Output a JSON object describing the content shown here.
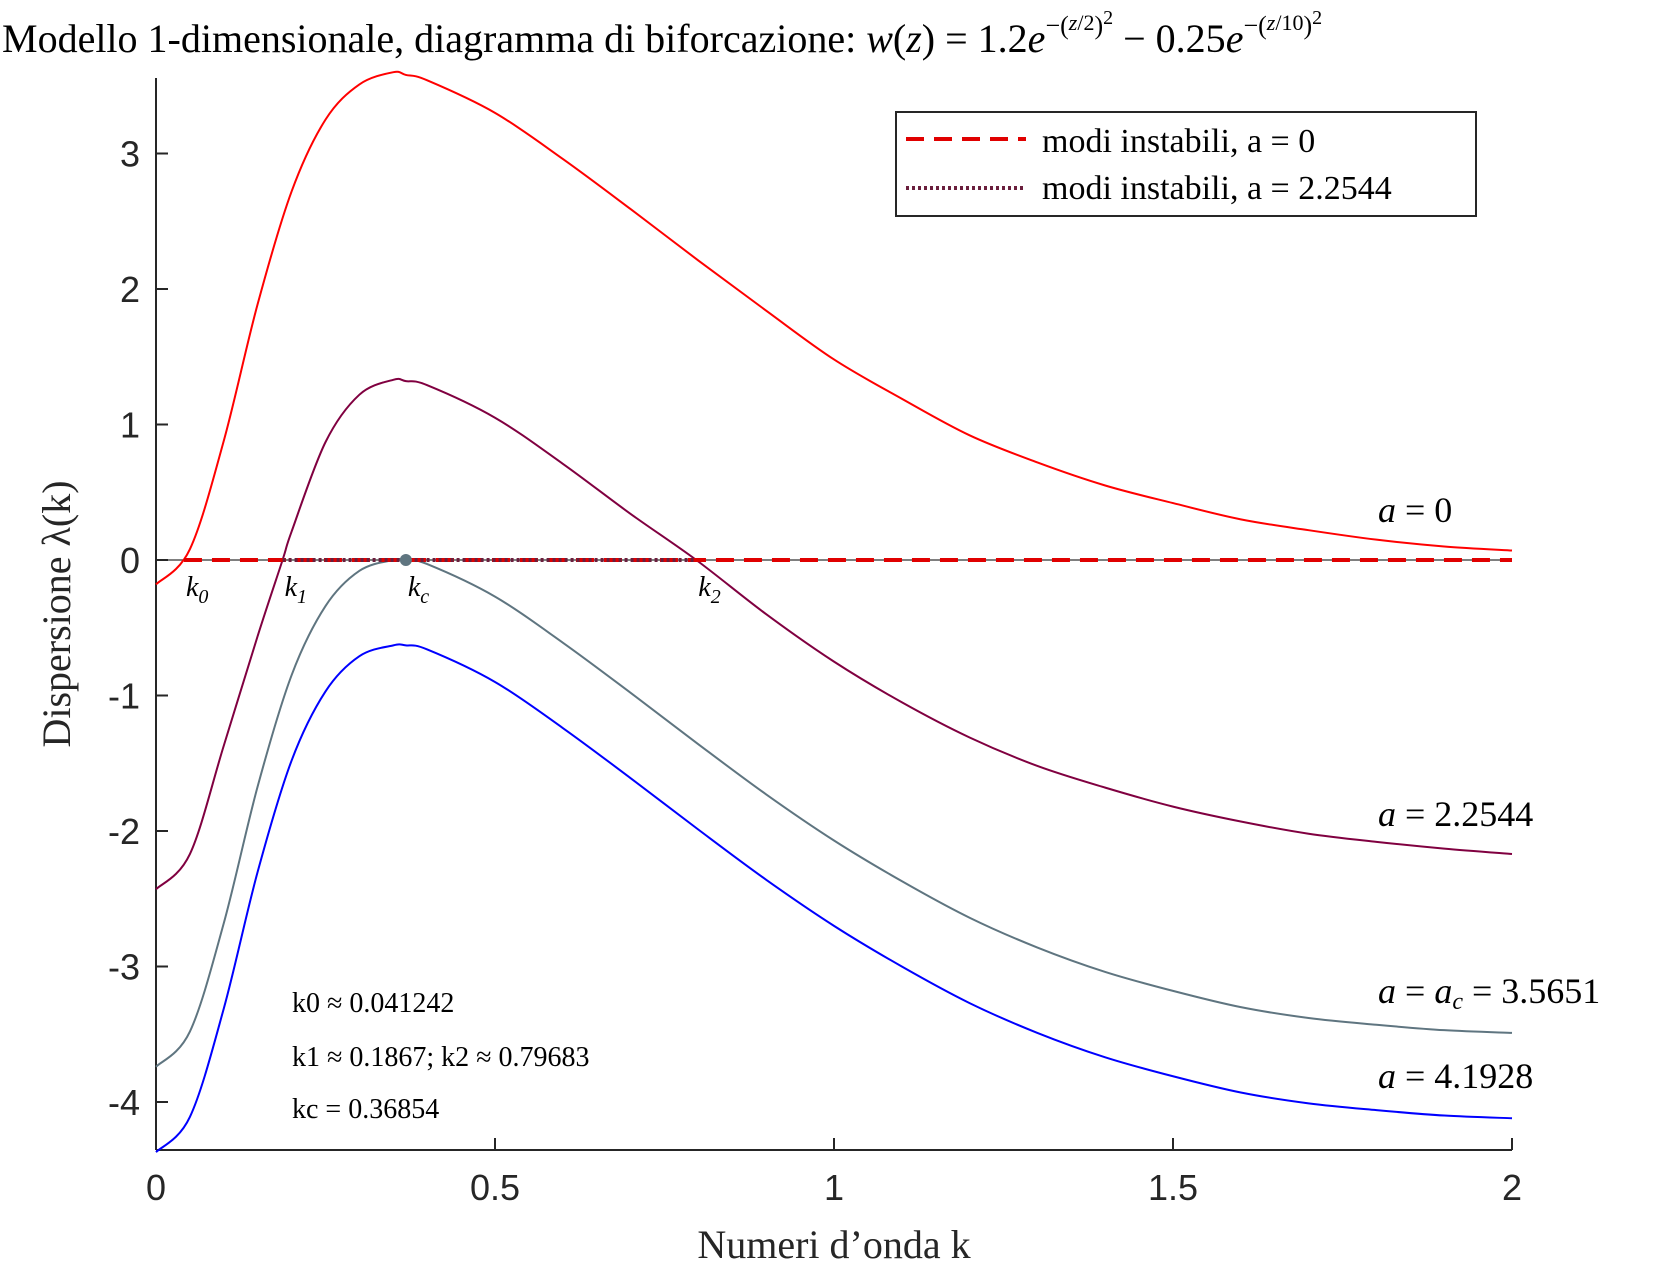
{
  "title": "Modello 1-dimensionale, diagramma di biforcazione: w(z) = 1.2e^(−(z/2)²) − 0.25e^(−(z/10)²)",
  "chart_data": {
    "type": "line",
    "title": "Modello 1-dimensionale, diagramma di biforcazione: w(z) = 1.2e^(−(z/2)²) − 0.25e^(−(z/10)²)",
    "xlabel": "Numeri d’onda k",
    "ylabel": "Dispersione λ(k)",
    "xlim": [
      0,
      2
    ],
    "ylim": [
      -4.4,
      3.6
    ],
    "xticks": [
      0,
      0.5,
      1,
      1.5,
      2
    ],
    "xtick_labels": [
      "0",
      "0.5",
      "1",
      "1.5",
      "2"
    ],
    "yticks": [
      -4,
      -3,
      -2,
      -1,
      0,
      1,
      2,
      3
    ],
    "ytick_labels": [
      "-4",
      "-3",
      "-2",
      "-1",
      "0",
      "1",
      "2",
      "3"
    ],
    "grid": false,
    "legend_position": "top-right",
    "legend": [
      {
        "label": "modi instabili, a = 0",
        "color": "#ff0000",
        "style": "dashed"
      },
      {
        "label": "modi instabili, a = 2.2544",
        "color": "#800040",
        "style": "dotted"
      }
    ],
    "series": [
      {
        "label": "a = 0",
        "color": "#ff0000",
        "x": [
          0,
          0.05,
          0.1,
          0.15,
          0.2,
          0.25,
          0.3,
          0.35,
          0.36854,
          0.4,
          0.5,
          0.6,
          0.7,
          0.8,
          0.9,
          1.0,
          1.1,
          1.2,
          1.3,
          1.4,
          1.5,
          1.6,
          1.7,
          1.8,
          1.9,
          2.0
        ],
        "y": [
          -0.18,
          0.08,
          0.88,
          1.89,
          2.72,
          3.25,
          3.51,
          3.6,
          3.58,
          3.54,
          3.3,
          2.96,
          2.59,
          2.21,
          1.84,
          1.48,
          1.19,
          0.92,
          0.72,
          0.55,
          0.42,
          0.3,
          0.22,
          0.15,
          0.1,
          0.07
        ]
      },
      {
        "label": "a = 2.2544",
        "color": "#800040",
        "x": [
          0,
          0.05,
          0.1,
          0.15,
          0.1867,
          0.2,
          0.25,
          0.3,
          0.35,
          0.36854,
          0.4,
          0.5,
          0.6,
          0.7,
          0.79683,
          0.9,
          1.0,
          1.1,
          1.2,
          1.3,
          1.4,
          1.5,
          1.6,
          1.7,
          1.8,
          1.9,
          2.0
        ],
        "y": [
          -2.43,
          -2.17,
          -1.37,
          -0.56,
          0.0,
          0.21,
          0.87,
          1.22,
          1.33,
          1.32,
          1.29,
          1.05,
          0.71,
          0.34,
          0.0,
          -0.4,
          -0.75,
          -1.05,
          -1.31,
          -1.52,
          -1.68,
          -1.82,
          -1.93,
          -2.02,
          -2.08,
          -2.13,
          -2.17
        ]
      },
      {
        "label": "a = a_c = 3.5651",
        "color": "#5f7580",
        "x": [
          0,
          0.05,
          0.1,
          0.15,
          0.2,
          0.25,
          0.3,
          0.35,
          0.36854,
          0.4,
          0.5,
          0.6,
          0.7,
          0.8,
          0.9,
          1.0,
          1.1,
          1.2,
          1.3,
          1.4,
          1.5,
          1.6,
          1.7,
          1.8,
          1.9,
          2.0
        ],
        "y": [
          -3.74,
          -3.48,
          -2.68,
          -1.67,
          -0.85,
          -0.34,
          -0.08,
          0.0,
          0.0,
          -0.03,
          -0.27,
          -0.61,
          -0.98,
          -1.36,
          -1.73,
          -2.07,
          -2.37,
          -2.64,
          -2.86,
          -3.04,
          -3.18,
          -3.3,
          -3.38,
          -3.43,
          -3.47,
          -3.49
        ]
      },
      {
        "label": "a = 4.1928",
        "color": "#0000ff",
        "x": [
          0,
          0.05,
          0.1,
          0.15,
          0.2,
          0.25,
          0.3,
          0.35,
          0.36854,
          0.4,
          0.5,
          0.6,
          0.7,
          0.8,
          0.9,
          1.0,
          1.1,
          1.2,
          1.3,
          1.4,
          1.5,
          1.6,
          1.7,
          1.8,
          1.9,
          2.0
        ],
        "y": [
          -4.37,
          -4.11,
          -3.31,
          -2.3,
          -1.48,
          -0.97,
          -0.71,
          -0.63,
          -0.63,
          -0.66,
          -0.9,
          -1.24,
          -1.61,
          -1.99,
          -2.36,
          -2.7,
          -3.0,
          -3.27,
          -3.49,
          -3.67,
          -3.81,
          -3.93,
          -4.01,
          -4.06,
          -4.1,
          -4.12
        ]
      }
    ],
    "unstable_modes": [
      {
        "label": "modi instabili, a = 0",
        "color": "#e00000",
        "style": "dashed",
        "x": [
          0.041242,
          2.0
        ],
        "y": 0
      },
      {
        "label": "modi instabili, a = 2.2544",
        "color": "#6a1f3d",
        "style": "dotted",
        "x": [
          0.1867,
          0.79683
        ],
        "y": 0
      }
    ],
    "critical_point": {
      "x": 0.36854,
      "y": 0,
      "color": "#5f7580"
    },
    "k_markers": [
      {
        "name": "k0",
        "x": 0.041242
      },
      {
        "name": "k1",
        "x": 0.1867
      },
      {
        "name": "kc",
        "x": 0.36854
      },
      {
        "name": "k2",
        "x": 0.79683
      }
    ],
    "annotations": [
      "k0 ≈ 0.041242",
      "k1 ≈ 0.1867;  k2 ≈ 0.79683",
      "kc = 0.36854"
    ]
  }
}
